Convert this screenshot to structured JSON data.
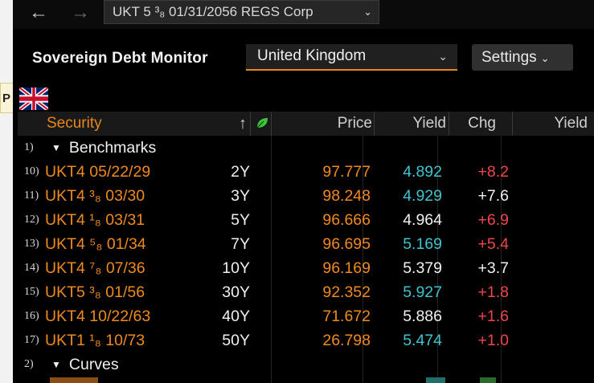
{
  "nav": {
    "back_icon": "arrow-left-icon",
    "forward_icon": "arrow-right-icon",
    "security": "UKT 5 ³₈ 01/31/2056 REGS Corp",
    "security_chevron": "⌄"
  },
  "side_tab": {
    "label": "P"
  },
  "header": {
    "title": "Sovereign Debt Monitor",
    "country": "United Kingdom",
    "settings_label": "Settings",
    "chevron": "⌄"
  },
  "flag": "uk-flag",
  "columns": {
    "security": "Security",
    "sort_arrow": "↑",
    "price": "Price",
    "yield": "Yield",
    "chg": "Chg",
    "yield2": "Yield"
  },
  "groups": [
    {
      "num": "1)",
      "label": "Benchmarks"
    },
    {
      "num": "2)",
      "label": "Curves"
    }
  ],
  "group_triangle": "▼",
  "rows": [
    {
      "num": "10)",
      "security": "UKT4 05/22/29",
      "tenor": "2Y",
      "price": "97.777",
      "yield": "4.892",
      "chg": "+8.2"
    },
    {
      "num": "11)",
      "security": "UKT4 ³₈ 03/30",
      "tenor": "3Y",
      "price": "98.248",
      "yield": "4.929",
      "chg": "+7.6"
    },
    {
      "num": "12)",
      "security": "UKT4 ¹₈ 03/31",
      "tenor": "5Y",
      "price": "96.666",
      "yield": "4.964",
      "chg": "+6.9"
    },
    {
      "num": "13)",
      "security": "UKT4 ⁵₈ 01/34",
      "tenor": "7Y",
      "price": "96.695",
      "yield": "5.169",
      "chg": "+5.4"
    },
    {
      "num": "14)",
      "security": "UKT4 ⁷₈ 07/36",
      "tenor": "10Y",
      "price": "96.169",
      "yield": "5.379",
      "chg": "+3.7"
    },
    {
      "num": "15)",
      "security": "UKT5 ³₈ 01/56",
      "tenor": "30Y",
      "price": "92.352",
      "yield": "5.927",
      "chg": "+1.8"
    },
    {
      "num": "16)",
      "security": "UKT4 10/22/63",
      "tenor": "40Y",
      "price": "71.672",
      "yield": "5.886",
      "chg": "+1.6"
    },
    {
      "num": "17)",
      "security": "UKT1 ¹₈ 10/73",
      "tenor": "50Y",
      "price": "26.798",
      "yield": "5.474",
      "chg": "+1.0"
    }
  ],
  "colors": {
    "accent_orange": "#ef8a1f",
    "yield_cyan": "#3fc4cf",
    "yield_white": "#f0f0f0",
    "chg_red": "#f0464a",
    "chg_white": "#f0f0f0",
    "leaf_green": "#3cc43c"
  },
  "row_styles": [
    {
      "yield_color": "#3fc4cf",
      "chg_color": "#f0464a"
    },
    {
      "yield_color": "#3fc4cf",
      "chg_color": "#f0f0f0"
    },
    {
      "yield_color": "#f0f0f0",
      "chg_color": "#f0464a"
    },
    {
      "yield_color": "#3fc4cf",
      "chg_color": "#f0464a"
    },
    {
      "yield_color": "#f0f0f0",
      "chg_color": "#f0f0f0"
    },
    {
      "yield_color": "#3fc4cf",
      "chg_color": "#f0464a"
    },
    {
      "yield_color": "#f0f0f0",
      "chg_color": "#f0464a"
    },
    {
      "yield_color": "#3fc4cf",
      "chg_color": "#f0464a"
    }
  ]
}
